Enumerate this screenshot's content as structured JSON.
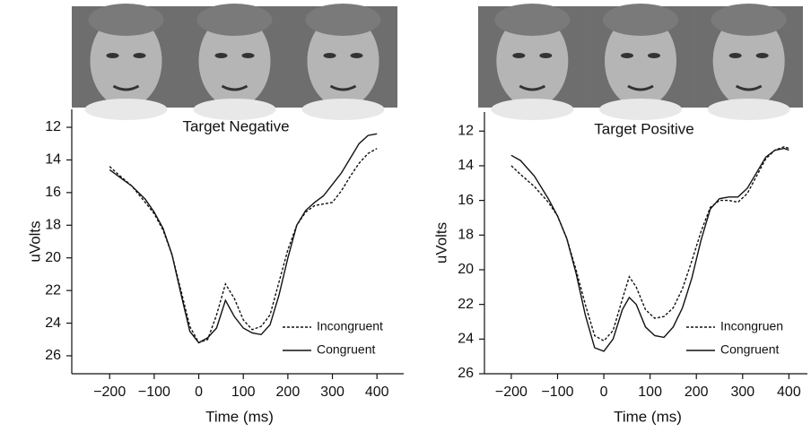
{
  "chart_data": [
    {
      "type": "line",
      "title": "Target Negative",
      "xlabel": "Time (ms)",
      "ylabel": "uVolts",
      "x": [
        -200,
        -180,
        -150,
        -120,
        -100,
        -80,
        -60,
        -40,
        -20,
        0,
        20,
        40,
        60,
        80,
        100,
        120,
        140,
        160,
        180,
        200,
        220,
        240,
        260,
        280,
        300,
        320,
        340,
        360,
        380,
        400
      ],
      "series": [
        {
          "name": "Incongruent",
          "color": "#111111",
          "line_style": "dashed",
          "values": [
            14.4,
            14.9,
            15.6,
            16.6,
            17.3,
            18.3,
            19.8,
            22.0,
            24.2,
            25.2,
            25.0,
            23.5,
            21.6,
            22.5,
            23.8,
            24.4,
            24.2,
            23.5,
            21.5,
            19.5,
            18.0,
            17.2,
            16.8,
            16.7,
            16.6,
            15.9,
            15.0,
            14.2,
            13.6,
            13.3
          ]
        },
        {
          "name": "Congruent",
          "color": "#111111",
          "line_style": "solid",
          "values": [
            14.6,
            15.0,
            15.6,
            16.4,
            17.2,
            18.2,
            19.8,
            22.2,
            24.5,
            25.2,
            24.9,
            24.3,
            22.6,
            23.6,
            24.3,
            24.6,
            24.7,
            24.1,
            22.3,
            20.0,
            18.0,
            17.1,
            16.6,
            16.2,
            15.5,
            14.8,
            13.9,
            13.0,
            12.5,
            12.4
          ]
        }
      ],
      "xlim": [
        -285,
        460
      ],
      "xticks": [
        {
          "value": -200,
          "label": "−200"
        },
        {
          "value": -100,
          "label": "−100"
        },
        0,
        100,
        200,
        300,
        400
      ],
      "ylim": [
        27.1,
        10.9
      ],
      "yticks": [
        12,
        14,
        16,
        18,
        20,
        22,
        24,
        26
      ],
      "legend": "lower right"
    },
    {
      "type": "line",
      "title": "Target Positive",
      "xlabel": "Time (ms)",
      "ylabel": "uVolts",
      "x": [
        -200,
        -180,
        -150,
        -120,
        -100,
        -80,
        -60,
        -40,
        -20,
        0,
        20,
        40,
        55,
        70,
        90,
        110,
        130,
        150,
        170,
        190,
        210,
        230,
        250,
        270,
        290,
        310,
        330,
        350,
        370,
        390,
        400
      ],
      "series": [
        {
          "name": "Incongruen",
          "color": "#111111",
          "line_style": "dashed",
          "values": [
            14.0,
            14.5,
            15.2,
            16.1,
            16.9,
            18.2,
            20.0,
            22.0,
            23.8,
            24.1,
            23.5,
            21.7,
            20.4,
            21.0,
            22.3,
            22.8,
            22.7,
            22.2,
            21.1,
            19.5,
            17.8,
            16.4,
            16.0,
            16.0,
            16.1,
            15.6,
            14.6,
            13.6,
            13.1,
            12.9,
            13.0
          ]
        },
        {
          "name": "Congruent",
          "color": "#111111",
          "line_style": "solid",
          "values": [
            13.4,
            13.7,
            14.6,
            15.9,
            16.9,
            18.2,
            20.2,
            22.6,
            24.5,
            24.7,
            24.0,
            22.3,
            21.6,
            22.0,
            23.3,
            23.8,
            23.9,
            23.3,
            22.2,
            20.5,
            18.3,
            16.5,
            15.9,
            15.8,
            15.8,
            15.3,
            14.4,
            13.5,
            13.1,
            13.0,
            13.1
          ]
        }
      ],
      "xlim": [
        -258,
        440
      ],
      "xticks": [
        {
          "value": -200,
          "label": "−200"
        },
        {
          "value": -100,
          "label": "−100"
        },
        0,
        100,
        200,
        300,
        400
      ],
      "ylim": [
        26,
        10.9
      ],
      "yticks": [
        12,
        14,
        16,
        18,
        20,
        22,
        24,
        26
      ],
      "legend": "lower right"
    }
  ]
}
